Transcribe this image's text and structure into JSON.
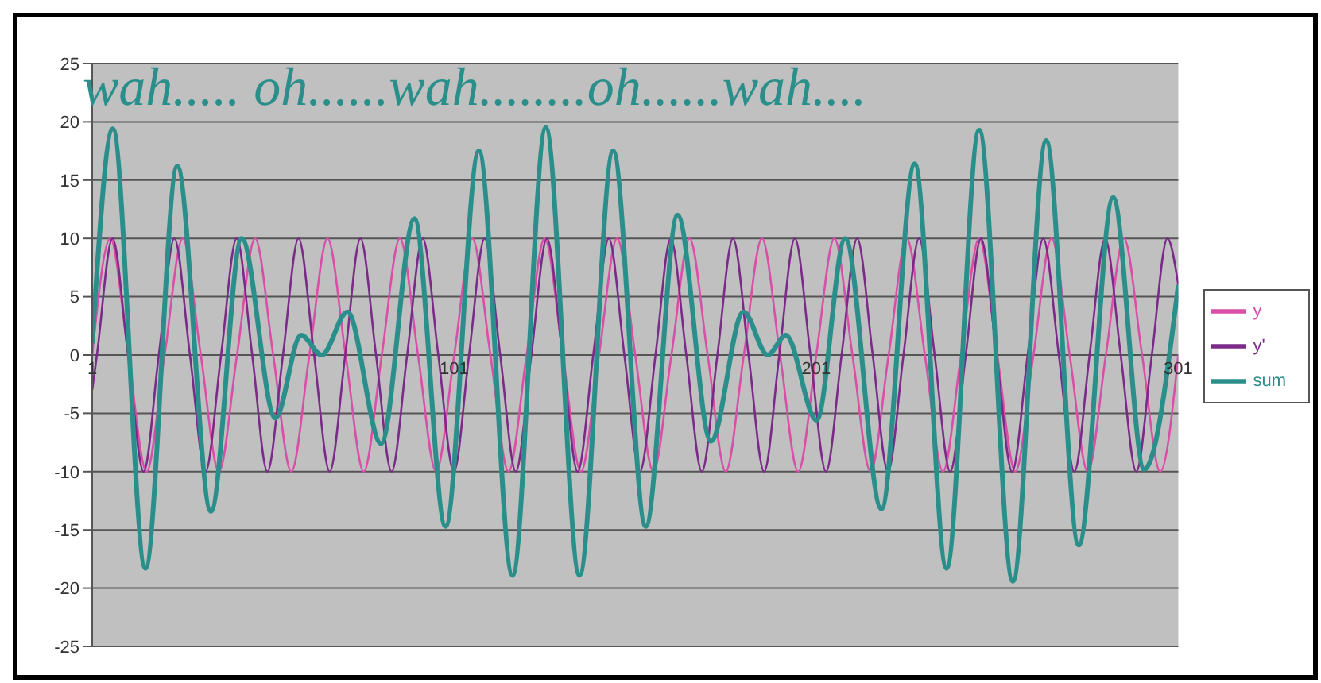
{
  "chart_data": {
    "type": "line",
    "annotations": [
      "wah..... oh......wah........oh......wah...."
    ],
    "xlim": [
      1,
      301
    ],
    "xticks": [
      1,
      101,
      201,
      301
    ],
    "ylim": [
      -25,
      25
    ],
    "yticks": [
      -25,
      -20,
      -15,
      -10,
      -5,
      0,
      5,
      10,
      15,
      20,
      25
    ],
    "grid": "y",
    "legend": "right",
    "marker": "none",
    "line_style": "solid",
    "series": [
      {
        "name": "y",
        "color": "#d94fa8",
        "x": [
          1,
          6,
          11,
          16,
          21,
          26,
          31,
          36,
          41,
          46,
          51,
          56,
          61,
          66,
          71,
          76,
          81,
          86,
          91,
          96,
          101,
          106,
          111,
          116,
          121,
          126,
          131,
          136,
          141,
          146,
          151,
          156,
          161,
          166,
          171,
          176,
          181,
          186,
          191,
          196,
          201,
          206,
          211,
          216,
          221,
          226,
          231,
          236,
          241,
          246,
          251,
          256,
          261,
          266,
          271,
          276,
          281,
          286,
          291,
          296,
          301
        ],
        "values": [
          0,
          10,
          0,
          -10,
          0,
          10,
          0,
          -10,
          0,
          10,
          0,
          -10,
          0,
          10,
          0,
          -10,
          0,
          10,
          0,
          -10,
          0,
          10,
          0,
          -10,
          0,
          10,
          0,
          -10,
          0,
          10,
          0,
          -10,
          0,
          10,
          0,
          -10,
          0,
          10,
          0,
          -10,
          0,
          10,
          0,
          -10,
          0,
          10,
          0,
          -10,
          0,
          10,
          0,
          -10,
          0,
          10,
          0,
          -10,
          0,
          10,
          0,
          -10,
          0
        ]
      },
      {
        "name": "y'",
        "color": "#7b2a8a",
        "x": [
          1,
          2.3,
          6.6,
          10.9,
          15.2,
          19.4,
          23.7,
          28.0,
          32.3,
          36.6,
          40.9,
          45.2,
          49.4,
          53.7,
          58.0,
          62.3,
          66.6,
          70.9,
          75.1,
          79.4,
          83.7,
          88.0,
          92.3,
          96.6,
          100.9,
          105.1,
          109.4,
          113.7,
          118.0,
          122.3,
          126.6,
          130.9,
          135.1,
          139.4,
          143.7,
          148.0,
          152.3,
          156.6,
          160.8,
          165.1,
          169.4,
          173.7,
          178.0,
          182.3,
          186.6,
          190.8,
          195.1,
          199.4,
          203.7,
          208.0,
          212.3,
          216.6,
          220.8,
          225.1,
          229.4,
          233.7,
          238.0,
          242.3,
          246.5,
          250.8,
          255.1,
          259.4,
          263.7,
          268.0,
          272.3,
          276.5,
          280.8,
          285.1,
          289.4,
          293.7,
          298.0,
          301
        ],
        "values": [
          -3,
          0,
          10,
          0,
          -10,
          0,
          10,
          0,
          -10,
          0,
          10,
          0,
          -10,
          0,
          10,
          0,
          -10,
          0,
          10,
          0,
          -10,
          0,
          10,
          0,
          -10,
          0,
          10,
          0,
          -10,
          0,
          10,
          0,
          -10,
          0,
          10,
          0,
          -10,
          0,
          10,
          0,
          -10,
          0,
          10,
          0,
          -10,
          0,
          10,
          0,
          -10,
          0,
          10,
          0,
          -10,
          0,
          10,
          0,
          -10,
          0,
          10,
          0,
          -10,
          0,
          10,
          0,
          -10,
          0,
          10,
          0,
          -10,
          0,
          10,
          6
        ]
      },
      {
        "name": "sum",
        "color": "#2a8f8a",
        "x": [
          1,
          6.7,
          15.7,
          24.5,
          33.8,
          42.3,
          51.6,
          58.7,
          64.4,
          71.5,
          80.8,
          90,
          98.6,
          107.8,
          117.1,
          126.3,
          135.6,
          144.9,
          153.9,
          162.7,
          171.9,
          180.9,
          187.6,
          192.6,
          201.1,
          209,
          219,
          228.2,
          237,
          246,
          255.3,
          264.5,
          273.5,
          283,
          291.6,
          301
        ],
        "values": [
          1,
          19.4,
          -18.3,
          16.2,
          -13.4,
          10,
          -5.4,
          1.7,
          0,
          3.7,
          -7.6,
          11.7,
          -14.7,
          17.5,
          -18.9,
          19.5,
          -18.9,
          17.5,
          -14.7,
          12,
          -7.4,
          3.7,
          0,
          1.7,
          -5.6,
          10,
          -13.2,
          16.4,
          -18.3,
          19.3,
          -19.4,
          18.4,
          -16.3,
          13.5,
          -9.8,
          6
        ]
      }
    ]
  }
}
